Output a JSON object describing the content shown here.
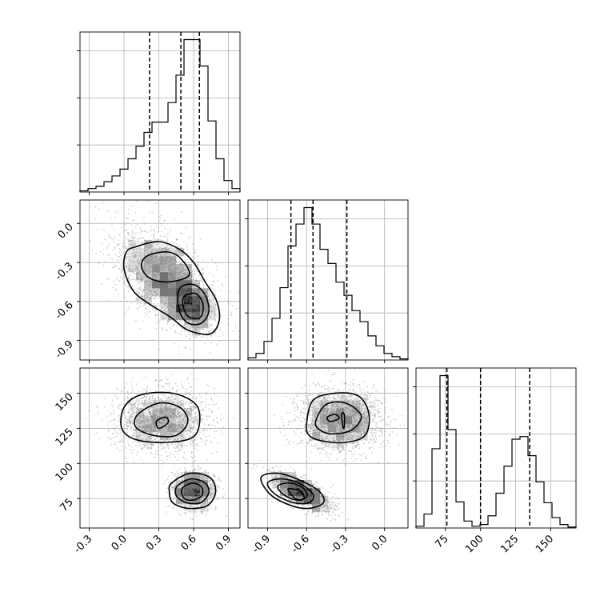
{
  "chart_data": {
    "type": "corner",
    "title": "",
    "parameters": [
      {
        "name": "",
        "range": [
          -0.38,
          1.0
        ],
        "ticks": [
          "-0.3",
          "0.0",
          "0.3",
          "0.6",
          "0.9"
        ],
        "tick_values": [
          -0.3,
          0.0,
          0.3,
          0.6,
          0.9
        ],
        "quantiles": [
          0.22,
          0.49,
          0.65
        ]
      },
      {
        "name": "",
        "range": [
          -1.05,
          0.18
        ],
        "ticks": [
          "-0.9",
          "-0.6",
          "-0.3",
          "0.0"
        ],
        "tick_values": [
          -0.9,
          -0.6,
          -0.3,
          0.0
        ],
        "quantiles": [
          -0.72,
          -0.55,
          -0.29
        ]
      },
      {
        "name": "",
        "range": [
          54,
          168
        ],
        "ticks": [
          "75",
          "100",
          "125",
          "150"
        ],
        "tick_values": [
          75,
          100,
          125,
          150
        ],
        "quantiles": [
          76,
          100,
          135
        ]
      }
    ],
    "histograms": [
      {
        "param": 0,
        "bin_edges": [
          -0.38,
          -0.311,
          -0.242,
          -0.173,
          -0.104,
          -0.035,
          0.034,
          0.103,
          0.172,
          0.241,
          0.31,
          0.379,
          0.448,
          0.517,
          0.586,
          0.655,
          0.724,
          0.793,
          0.862,
          0.931,
          1.0
        ],
        "counts": [
          1,
          3,
          5,
          9,
          14,
          20,
          29,
          40,
          52,
          61,
          61,
          78,
          102,
          133,
          133,
          110,
          62,
          29,
          10,
          3
        ]
      },
      {
        "param": 1,
        "bin_edges": [
          -1.05,
          -0.9885,
          -0.927,
          -0.8655,
          -0.804,
          -0.7425,
          -0.681,
          -0.6195,
          -0.558,
          -0.4965,
          -0.435,
          -0.3735,
          -0.312,
          -0.2505,
          -0.189,
          -0.1275,
          -0.066,
          -0.0045,
          0.057,
          0.1185,
          0.18
        ],
        "counts": [
          2,
          6,
          17,
          38,
          66,
          104,
          124,
          139,
          124,
          101,
          88,
          71,
          59,
          45,
          35,
          22,
          13,
          6,
          3,
          1
        ]
      },
      {
        "param": 2,
        "bin_edges": [
          54,
          59.7,
          65.4,
          71.1,
          76.8,
          82.5,
          88.2,
          93.9,
          99.6,
          105.3,
          111.0,
          116.7,
          122.4,
          128.1,
          133.8,
          139.5,
          145.2,
          150.9,
          156.6,
          162.3,
          168
        ],
        "counts": [
          2,
          16,
          91,
          175,
          113,
          30,
          8,
          2,
          4,
          14,
          40,
          71,
          102,
          105,
          83,
          53,
          29,
          12,
          4,
          1
        ]
      }
    ],
    "scatter_2d": [
      {
        "x_param": 0,
        "y_param": 1,
        "clusters": [
          {
            "cx": 0.35,
            "cy": -0.42,
            "sx": 0.22,
            "sy": 0.2,
            "rho": -0.5,
            "n": 1800
          },
          {
            "cx": 0.58,
            "cy": -0.63,
            "sx": 0.1,
            "sy": 0.11,
            "rho": -0.3,
            "n": 700
          }
        ],
        "contours": [
          [
            [
              0.1,
              -0.18
            ],
            [
              0.3,
              -0.14
            ],
            [
              0.48,
              -0.2
            ],
            [
              0.6,
              -0.3
            ],
            [
              0.7,
              -0.45
            ],
            [
              0.8,
              -0.6
            ],
            [
              0.82,
              -0.75
            ],
            [
              0.74,
              -0.85
            ],
            [
              0.55,
              -0.82
            ],
            [
              0.4,
              -0.72
            ],
            [
              0.22,
              -0.62
            ],
            [
              0.08,
              -0.52
            ],
            [
              0.0,
              -0.35
            ],
            [
              0.02,
              -0.22
            ]
          ],
          [
            [
              0.2,
              -0.25
            ],
            [
              0.38,
              -0.22
            ],
            [
              0.5,
              -0.28
            ],
            [
              0.56,
              -0.4
            ],
            [
              0.38,
              -0.45
            ],
            [
              0.22,
              -0.42
            ],
            [
              0.15,
              -0.33
            ]
          ],
          [
            [
              0.48,
              -0.5
            ],
            [
              0.6,
              -0.47
            ],
            [
              0.7,
              -0.55
            ],
            [
              0.73,
              -0.68
            ],
            [
              0.66,
              -0.77
            ],
            [
              0.54,
              -0.76
            ],
            [
              0.47,
              -0.65
            ]
          ],
          [
            [
              0.52,
              -0.56
            ],
            [
              0.62,
              -0.54
            ],
            [
              0.68,
              -0.62
            ],
            [
              0.66,
              -0.72
            ],
            [
              0.56,
              -0.72
            ],
            [
              0.51,
              -0.64
            ]
          ]
        ]
      },
      {
        "x_param": 0,
        "y_param": 2,
        "clusters": [
          {
            "cx": 0.33,
            "cy": 131,
            "sx": 0.2,
            "sy": 11,
            "rho": 0,
            "n": 1800
          },
          {
            "cx": 0.6,
            "cy": 81,
            "sx": 0.09,
            "sy": 7,
            "rho": 0,
            "n": 1200
          }
        ],
        "contours": [
          [
            [
              0.0,
              140
            ],
            [
              0.15,
              149
            ],
            [
              0.42,
              150
            ],
            [
              0.62,
              142
            ],
            [
              0.65,
              128
            ],
            [
              0.58,
              118
            ],
            [
              0.35,
              115
            ],
            [
              0.1,
              117
            ],
            [
              -0.02,
              125
            ]
          ],
          [
            [
              0.12,
              135
            ],
            [
              0.3,
              143
            ],
            [
              0.48,
              140
            ],
            [
              0.55,
              130
            ],
            [
              0.45,
              120
            ],
            [
              0.25,
              120
            ],
            [
              0.1,
              126
            ]
          ],
          [
            [
              0.28,
              130
            ],
            [
              0.36,
              133
            ],
            [
              0.38,
              129
            ],
            [
              0.3,
              125
            ]
          ],
          [
            [
              0.41,
              86
            ],
            [
              0.57,
              93
            ],
            [
              0.74,
              90
            ],
            [
              0.79,
              80
            ],
            [
              0.72,
              70
            ],
            [
              0.55,
              68
            ],
            [
              0.42,
              72
            ],
            [
              0.39,
              80
            ]
          ],
          [
            [
              0.46,
              84
            ],
            [
              0.58,
              89
            ],
            [
              0.7,
              86
            ],
            [
              0.73,
              79
            ],
            [
              0.66,
              72
            ],
            [
              0.54,
              72
            ],
            [
              0.45,
              77
            ]
          ],
          [
            [
              0.5,
              82
            ],
            [
              0.59,
              86
            ],
            [
              0.67,
              83
            ],
            [
              0.67,
              77
            ],
            [
              0.6,
              74
            ],
            [
              0.52,
              75
            ]
          ]
        ]
      },
      {
        "x_param": 1,
        "y_param": 2,
        "clusters": [
          {
            "cx": -0.35,
            "cy": 131,
            "sx": 0.17,
            "sy": 11,
            "rho": 0,
            "n": 1800
          },
          {
            "cx": -0.65,
            "cy": 80,
            "sx": 0.12,
            "sy": 7,
            "rho": -0.7,
            "n": 1200
          }
        ],
        "contours": [
          [
            [
              -0.6,
              128
            ],
            [
              -0.55,
              145
            ],
            [
              -0.38,
              150
            ],
            [
              -0.2,
              148
            ],
            [
              -0.12,
              135
            ],
            [
              -0.15,
              120
            ],
            [
              -0.3,
              115
            ],
            [
              -0.48,
              116
            ],
            [
              -0.58,
              120
            ]
          ],
          [
            [
              -0.53,
              130
            ],
            [
              -0.45,
              142
            ],
            [
              -0.3,
              143
            ],
            [
              -0.18,
              134
            ],
            [
              -0.25,
              124
            ],
            [
              -0.4,
              121
            ],
            [
              -0.5,
              124
            ]
          ],
          [
            [
              -0.44,
              133
            ],
            [
              -0.38,
              135
            ],
            [
              -0.35,
              132
            ],
            [
              -0.42,
              130
            ]
          ],
          [
            [
              -0.33,
              135
            ],
            [
              -0.31,
              135
            ],
            [
              -0.31,
              126
            ],
            [
              -0.32,
              126
            ]
          ],
          [
            [
              -0.95,
              90
            ],
            [
              -0.82,
              93
            ],
            [
              -0.65,
              88
            ],
            [
              -0.5,
              80
            ],
            [
              -0.47,
              72
            ],
            [
              -0.58,
              68
            ],
            [
              -0.72,
              70
            ],
            [
              -0.88,
              78
            ]
          ],
          [
            [
              -0.9,
              86
            ],
            [
              -0.8,
              89
            ],
            [
              -0.66,
              86
            ],
            [
              -0.55,
              78
            ],
            [
              -0.58,
              72
            ],
            [
              -0.7,
              72
            ],
            [
              -0.84,
              78
            ]
          ],
          [
            [
              -0.82,
              84
            ],
            [
              -0.72,
              86
            ],
            [
              -0.62,
              82
            ],
            [
              -0.6,
              76
            ],
            [
              -0.68,
              74
            ],
            [
              -0.78,
              78
            ]
          ],
          [
            [
              -0.74,
              82
            ],
            [
              -0.64,
              80
            ],
            [
              -0.62,
              75
            ],
            [
              -0.66,
              74
            ],
            [
              -0.71,
              77
            ]
          ]
        ]
      }
    ]
  }
}
